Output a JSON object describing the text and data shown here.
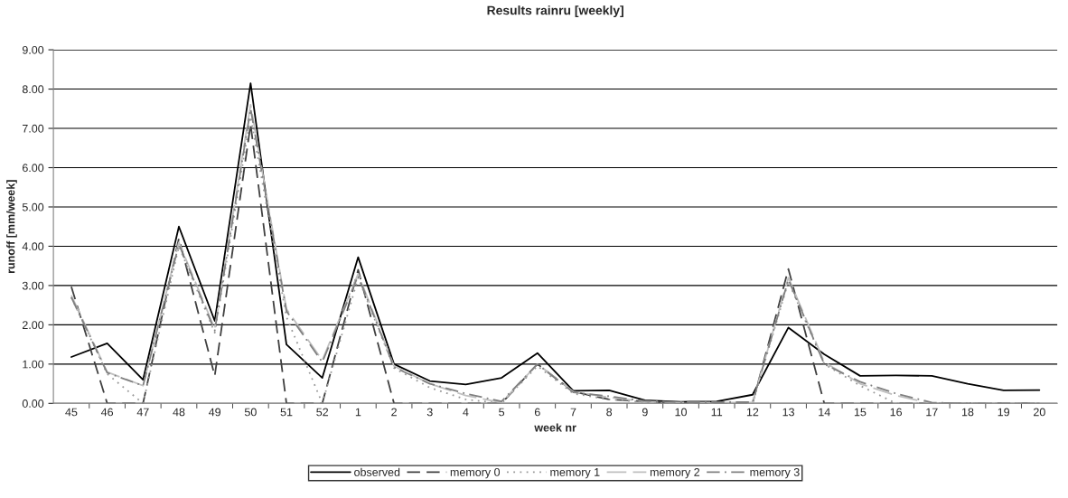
{
  "chart_data": {
    "type": "line",
    "title": "Results rainru [weekly]",
    "xlabel": "week nr",
    "ylabel": "runoff [mm/week]",
    "categories": [
      "45",
      "46",
      "47",
      "48",
      "49",
      "50",
      "51",
      "52",
      "1",
      "2",
      "3",
      "4",
      "5",
      "6",
      "7",
      "8",
      "9",
      "10",
      "11",
      "12",
      "13",
      "14",
      "15",
      "16",
      "17",
      "18",
      "19",
      "20"
    ],
    "series": [
      {
        "name": "observed",
        "color": "#000000",
        "line_style": "solid",
        "values": [
          1.18,
          1.53,
          0.6,
          4.5,
          2.1,
          8.15,
          1.5,
          0.65,
          3.72,
          1.0,
          0.57,
          0.48,
          0.65,
          1.28,
          0.32,
          0.33,
          0.08,
          0.04,
          0.05,
          0.22,
          1.93,
          1.25,
          0.7,
          0.71,
          0.7,
          0.5,
          0.33,
          0.34
        ]
      },
      {
        "name": "memory 0",
        "color": "#404040",
        "line_style": "dashed",
        "values": [
          2.97,
          0,
          0,
          4.2,
          0.7,
          7.1,
          0,
          0,
          3.4,
          0,
          0,
          0,
          0,
          1.0,
          0.3,
          0.1,
          0.05,
          0,
          0,
          0,
          3.42,
          0,
          0,
          0,
          0,
          0,
          0,
          0
        ]
      },
      {
        "name": "memory 1",
        "color": "#999999",
        "line_style": "dotted",
        "values": [
          2.7,
          0.75,
          0,
          4.0,
          1.8,
          7.3,
          2.2,
          0,
          3.2,
          0.9,
          0.4,
          0.1,
          0,
          0.95,
          0.25,
          0.1,
          0.03,
          0,
          0,
          0,
          3.1,
          1.0,
          0.45,
          0,
          0,
          0,
          0,
          0
        ]
      },
      {
        "name": "memory 2",
        "color": "#c0c0c0",
        "line_style": "longdash",
        "values": [
          2.75,
          0.8,
          0.45,
          4.1,
          1.9,
          7.6,
          2.4,
          1.1,
          3.3,
          0.95,
          0.5,
          0.2,
          0.02,
          1.0,
          0.3,
          0.15,
          0.05,
          0.02,
          0.02,
          0.02,
          3.2,
          1.05,
          0.5,
          0.2,
          0,
          0,
          0,
          0
        ]
      },
      {
        "name": "memory 3",
        "color": "#808080",
        "line_style": "dashdot",
        "values": [
          2.7,
          0.78,
          0.45,
          4.05,
          1.85,
          7.5,
          2.35,
          1.05,
          3.25,
          0.92,
          0.5,
          0.25,
          0.05,
          1.0,
          0.28,
          0.18,
          0.06,
          0.03,
          0.03,
          0.03,
          3.15,
          1.0,
          0.55,
          0.25,
          0.02,
          0,
          0,
          0
        ]
      }
    ],
    "ylim": [
      0,
      9
    ],
    "yticks": [
      {
        "value": 0,
        "label": "0.00"
      },
      {
        "value": 1,
        "label": "1.00"
      },
      {
        "value": 2,
        "label": "2.00"
      },
      {
        "value": 3,
        "label": "3.00"
      },
      {
        "value": 4,
        "label": "4.00"
      },
      {
        "value": 5,
        "label": "5.00"
      },
      {
        "value": 6,
        "label": "6.00"
      },
      {
        "value": 7,
        "label": "7.00"
      },
      {
        "value": 8,
        "label": "8.00"
      },
      {
        "value": 9,
        "label": "9.00"
      }
    ],
    "grid": "y",
    "legend": "bottom",
    "marker": "none"
  }
}
